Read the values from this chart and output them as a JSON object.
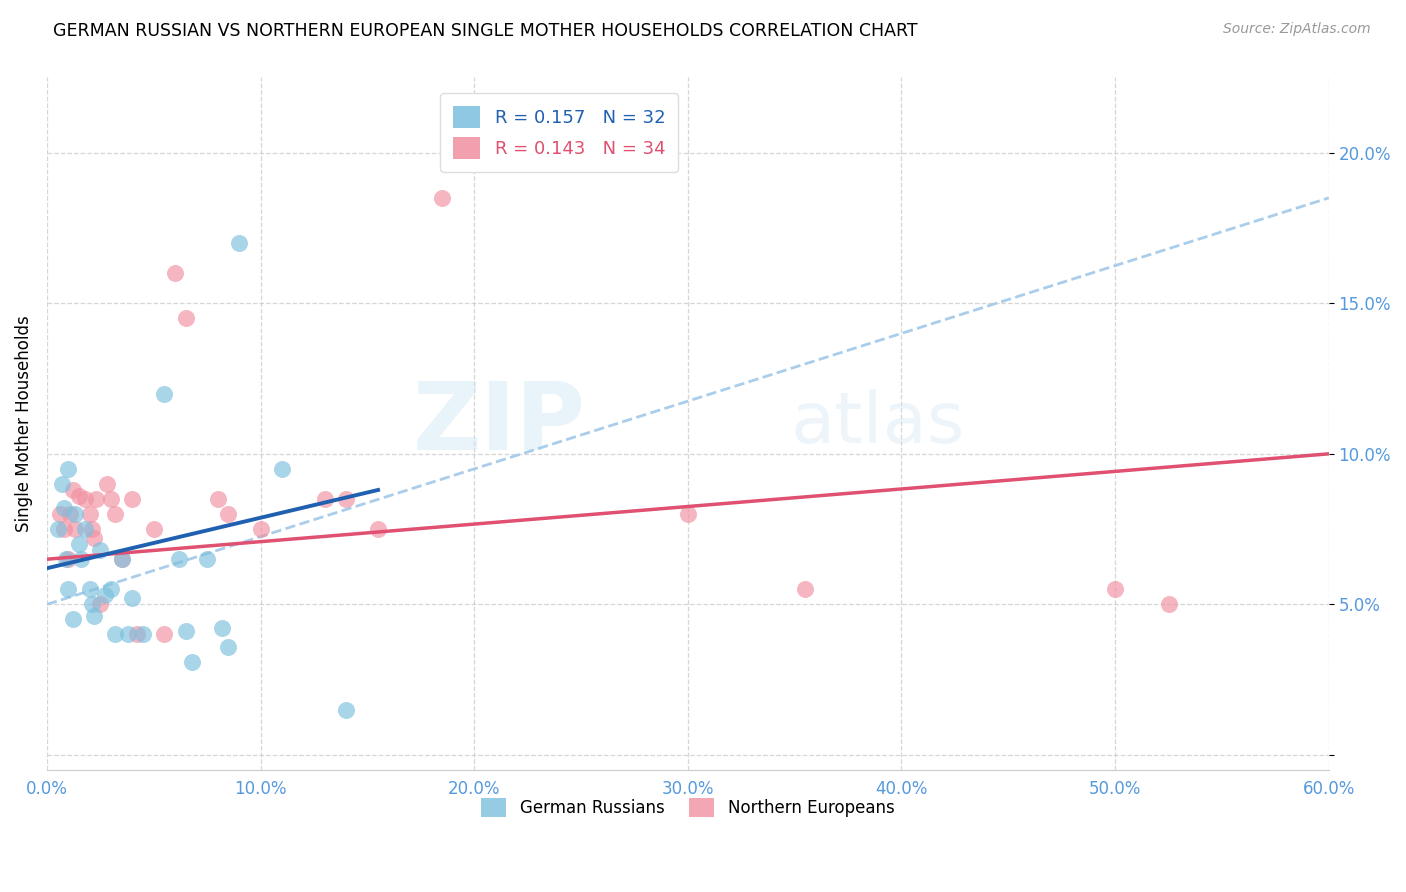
{
  "title": "GERMAN RUSSIAN VS NORTHERN EUROPEAN SINGLE MOTHER HOUSEHOLDS CORRELATION CHART",
  "source": "Source: ZipAtlas.com",
  "ylabel": "Single Mother Households",
  "xlim": [
    0.0,
    0.6
  ],
  "ylim": [
    -0.005,
    0.225
  ],
  "legend_entry1": "R = 0.157   N = 32",
  "legend_entry2": "R = 0.143   N = 34",
  "legend_label1": "German Russians",
  "legend_label2": "Northern Europeans",
  "blue_scatter_color": "#7bbfdd",
  "pink_scatter_color": "#f090a0",
  "blue_line_color": "#2060b0",
  "pink_line_color": "#e05070",
  "dashed_line_color": "#a0c8e8",
  "watermark_zip": "ZIP",
  "watermark_atlas": "atlas",
  "german_russian_x": [
    0.005,
    0.007,
    0.008,
    0.009,
    0.01,
    0.01,
    0.012,
    0.013,
    0.015,
    0.016,
    0.018,
    0.02,
    0.021,
    0.022,
    0.025,
    0.027,
    0.03,
    0.032,
    0.035,
    0.038,
    0.04,
    0.045,
    0.055,
    0.062,
    0.065,
    0.068,
    0.075,
    0.082,
    0.085,
    0.09,
    0.11,
    0.14
  ],
  "german_russian_y": [
    0.075,
    0.09,
    0.082,
    0.065,
    0.095,
    0.055,
    0.045,
    0.08,
    0.07,
    0.065,
    0.075,
    0.055,
    0.05,
    0.046,
    0.068,
    0.053,
    0.055,
    0.04,
    0.065,
    0.04,
    0.052,
    0.04,
    0.12,
    0.065,
    0.041,
    0.031,
    0.065,
    0.042,
    0.036,
    0.17,
    0.095,
    0.015
  ],
  "northern_european_x": [
    0.006,
    0.008,
    0.01,
    0.011,
    0.012,
    0.013,
    0.015,
    0.018,
    0.02,
    0.021,
    0.022,
    0.023,
    0.025,
    0.028,
    0.03,
    0.032,
    0.035,
    0.04,
    0.042,
    0.05,
    0.055,
    0.06,
    0.065,
    0.08,
    0.085,
    0.1,
    0.13,
    0.14,
    0.155,
    0.185,
    0.3,
    0.355,
    0.5,
    0.525
  ],
  "northern_european_y": [
    0.08,
    0.075,
    0.065,
    0.08,
    0.088,
    0.075,
    0.086,
    0.085,
    0.08,
    0.075,
    0.072,
    0.085,
    0.05,
    0.09,
    0.085,
    0.08,
    0.065,
    0.085,
    0.04,
    0.075,
    0.04,
    0.16,
    0.145,
    0.085,
    0.08,
    0.075,
    0.085,
    0.085,
    0.075,
    0.185,
    0.08,
    0.055,
    0.055,
    0.05
  ],
  "gr_line_x0": 0.0,
  "gr_line_y0": 0.062,
  "gr_line_x1": 0.155,
  "gr_line_y1": 0.088,
  "ne_line_x0": 0.0,
  "ne_line_y0": 0.065,
  "ne_line_x1": 0.6,
  "ne_line_y1": 0.1,
  "dash_line_x0": 0.0,
  "dash_line_y0": 0.05,
  "dash_line_x1": 0.6,
  "dash_line_y1": 0.185
}
